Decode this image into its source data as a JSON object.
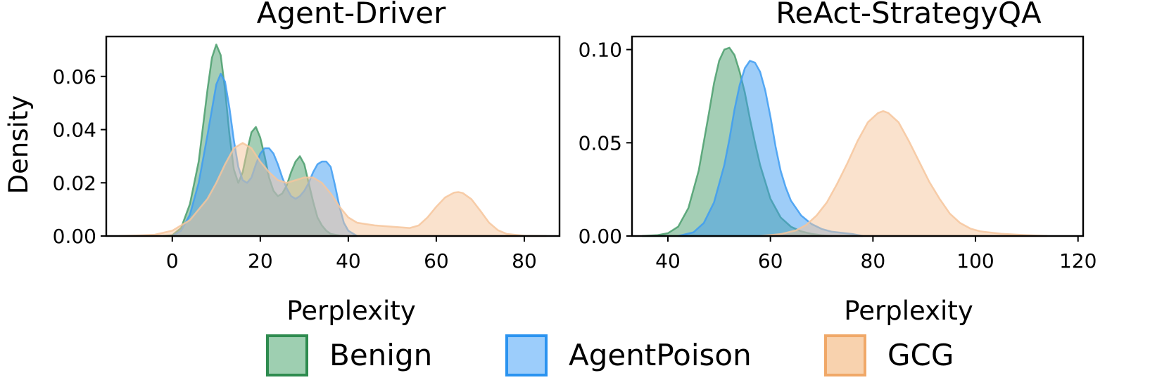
{
  "figure": {
    "shared_ylabel": "Density",
    "legend": {
      "placement": "bottom-center",
      "entries": [
        {
          "label": "Benign",
          "face": "#9ecfb1",
          "edge": "#2e8b4f"
        },
        {
          "label": "AgentPoison",
          "face": "#9ccdfb",
          "edge": "#2a93f0"
        },
        {
          "label": "GCG",
          "face": "#f8d2ae",
          "edge": "#f0a868"
        }
      ]
    }
  },
  "chart_data": [
    {
      "type": "area",
      "title": "Agent-Driver",
      "xlabel": "Perplexity",
      "ylabel": "Density",
      "xlim": [
        -15,
        88
      ],
      "ylim": [
        0,
        0.075
      ],
      "xticks": [
        0,
        20,
        40,
        60,
        80
      ],
      "yticks": [
        0.0,
        0.02,
        0.04,
        0.06
      ],
      "ytick_labels": [
        "0.00",
        "0.02",
        "0.04",
        "0.06"
      ],
      "grid": false,
      "series": [
        {
          "name": "Benign",
          "color": "#4a9e6c",
          "x": [
            -2,
            0,
            2,
            4,
            6,
            8,
            9,
            10,
            11,
            12,
            13,
            14,
            15,
            16,
            17,
            18,
            19,
            20,
            21,
            22,
            23,
            24,
            25,
            26,
            27,
            28,
            29,
            30,
            31,
            32,
            33,
            34,
            35,
            36,
            38,
            40
          ],
          "y": [
            0,
            0.0003,
            0.003,
            0.012,
            0.028,
            0.055,
            0.067,
            0.072,
            0.068,
            0.055,
            0.038,
            0.025,
            0.02,
            0.024,
            0.032,
            0.039,
            0.041,
            0.037,
            0.03,
            0.022,
            0.017,
            0.015,
            0.016,
            0.019,
            0.024,
            0.028,
            0.03,
            0.027,
            0.02,
            0.013,
            0.007,
            0.004,
            0.002,
            0.0008,
            0.0002,
            0
          ]
        },
        {
          "name": "AgentPoison",
          "color": "#3e9cf2",
          "x": [
            0,
            2,
            4,
            6,
            8,
            10,
            11,
            12,
            13,
            14,
            15,
            16,
            17,
            18,
            19,
            20,
            21,
            22,
            23,
            24,
            25,
            26,
            27,
            28,
            29,
            30,
            31,
            32,
            33,
            34,
            35,
            36,
            37,
            38,
            39,
            40,
            42
          ],
          "y": [
            0,
            0.002,
            0.008,
            0.02,
            0.038,
            0.057,
            0.061,
            0.058,
            0.048,
            0.036,
            0.026,
            0.021,
            0.02,
            0.022,
            0.027,
            0.031,
            0.033,
            0.033,
            0.031,
            0.027,
            0.022,
            0.018,
            0.015,
            0.014,
            0.015,
            0.017,
            0.02,
            0.024,
            0.027,
            0.028,
            0.028,
            0.026,
            0.019,
            0.011,
            0.005,
            0.002,
            0
          ]
        },
        {
          "name": "GCG",
          "color": "#f6c69c",
          "x": [
            -12,
            -8,
            -4,
            0,
            4,
            8,
            10,
            12,
            14,
            16,
            18,
            20,
            22,
            24,
            26,
            28,
            30,
            32,
            34,
            36,
            38,
            40,
            42,
            44,
            46,
            50,
            54,
            56,
            58,
            60,
            62,
            64,
            65,
            66,
            68,
            70,
            72,
            74,
            76,
            80,
            85
          ],
          "y": [
            0,
            0.0002,
            0.0005,
            0.002,
            0.006,
            0.014,
            0.02,
            0.027,
            0.033,
            0.035,
            0.033,
            0.028,
            0.024,
            0.021,
            0.02,
            0.021,
            0.022,
            0.022,
            0.02,
            0.016,
            0.011,
            0.007,
            0.005,
            0.0045,
            0.004,
            0.0035,
            0.003,
            0.004,
            0.007,
            0.011,
            0.0145,
            0.0163,
            0.0165,
            0.0162,
            0.0138,
            0.0095,
            0.005,
            0.0022,
            0.0008,
            0.0001,
            0
          ]
        }
      ]
    },
    {
      "type": "area",
      "title": "ReAct-StrategyQA",
      "xlabel": "Perplexity",
      "ylabel": "",
      "xlim": [
        33,
        121
      ],
      "ylim": [
        0,
        0.107
      ],
      "xticks": [
        40,
        60,
        80,
        100,
        120
      ],
      "yticks": [
        0.0,
        0.05,
        0.1
      ],
      "ytick_labels": [
        "0.00",
        "0.05",
        "0.10"
      ],
      "grid": false,
      "series": [
        {
          "name": "Benign",
          "color": "#4a9e6c",
          "x": [
            35,
            38,
            40,
            42,
            44,
            46,
            48,
            49,
            50,
            51,
            52,
            53,
            54,
            55,
            56,
            57,
            58,
            60,
            62,
            64,
            66,
            68,
            70,
            72
          ],
          "y": [
            0,
            0.0005,
            0.0015,
            0.005,
            0.015,
            0.035,
            0.066,
            0.082,
            0.094,
            0.1,
            0.101,
            0.097,
            0.088,
            0.077,
            0.063,
            0.05,
            0.038,
            0.02,
            0.01,
            0.005,
            0.0025,
            0.0012,
            0.0004,
            0
          ]
        },
        {
          "name": "AgentPoison",
          "color": "#3e9cf2",
          "x": [
            42,
            45,
            47,
            49,
            51,
            52,
            53,
            54,
            55,
            56,
            57,
            58,
            59,
            60,
            61,
            62,
            63,
            64,
            66,
            68,
            70,
            72,
            74,
            76,
            78
          ],
          "y": [
            0,
            0.002,
            0.007,
            0.018,
            0.038,
            0.052,
            0.068,
            0.081,
            0.09,
            0.094,
            0.093,
            0.088,
            0.078,
            0.064,
            0.048,
            0.035,
            0.026,
            0.019,
            0.011,
            0.0065,
            0.0038,
            0.0023,
            0.0017,
            0.0011,
            0
          ]
        },
        {
          "name": "GCG",
          "color": "#f6c69c",
          "x": [
            58,
            62,
            65,
            67,
            69,
            71,
            73,
            75,
            77,
            79,
            81,
            82,
            83,
            85,
            87,
            89,
            91,
            93,
            95,
            97,
            99,
            101,
            105,
            110,
            114
          ],
          "y": [
            0,
            0.001,
            0.003,
            0.006,
            0.011,
            0.018,
            0.028,
            0.039,
            0.051,
            0.061,
            0.066,
            0.067,
            0.066,
            0.061,
            0.051,
            0.04,
            0.029,
            0.02,
            0.012,
            0.007,
            0.004,
            0.0025,
            0.0012,
            0.0005,
            0
          ]
        }
      ]
    }
  ]
}
